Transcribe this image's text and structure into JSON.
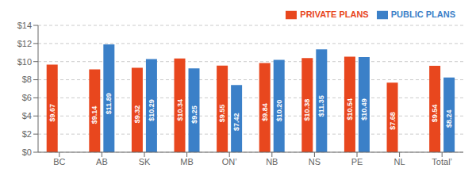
{
  "chart_data": {
    "type": "bar",
    "categories": [
      "BC",
      "AB",
      "SK",
      "MB",
      "ON’",
      "NB",
      "NS",
      "PE",
      "NL",
      "Total’"
    ],
    "series": [
      {
        "name": "PRIVATE PLANS",
        "color": "#E8471E",
        "values": [
          9.67,
          9.14,
          9.32,
          10.34,
          9.55,
          9.84,
          10.38,
          10.54,
          7.68,
          9.54
        ],
        "value_labels": [
          "$9.67",
          "$9.14",
          "$9.32",
          "$10.34",
          "$9.55",
          "$9.84",
          "$10.38",
          "$10.54",
          "$7.68",
          "$9.54"
        ]
      },
      {
        "name": "PUBLIC PLANS",
        "color": "#3B80C8",
        "values": [
          null,
          11.89,
          10.29,
          9.25,
          7.42,
          10.2,
          11.35,
          10.49,
          null,
          8.24
        ],
        "value_labels": [
          null,
          "$11.89",
          "$10.29",
          "$9.25",
          "$7.42",
          "$10.20",
          "$11.35",
          "$10.49",
          null,
          "$8.24"
        ]
      }
    ],
    "ylim": [
      0,
      14
    ],
    "yticks": [
      {
        "value": 0,
        "label": "$0"
      },
      {
        "value": 2,
        "label": "$2"
      },
      {
        "value": 4,
        "label": "$4"
      },
      {
        "value": 6,
        "label": "$6"
      },
      {
        "value": 8,
        "label": "$8"
      },
      {
        "value": 10,
        "label": "$10"
      },
      {
        "value": 12,
        "label": "$12"
      },
      {
        "value": 14,
        "label": "$14"
      }
    ],
    "grid": true,
    "legend": "upper right",
    "data_labels": true
  }
}
